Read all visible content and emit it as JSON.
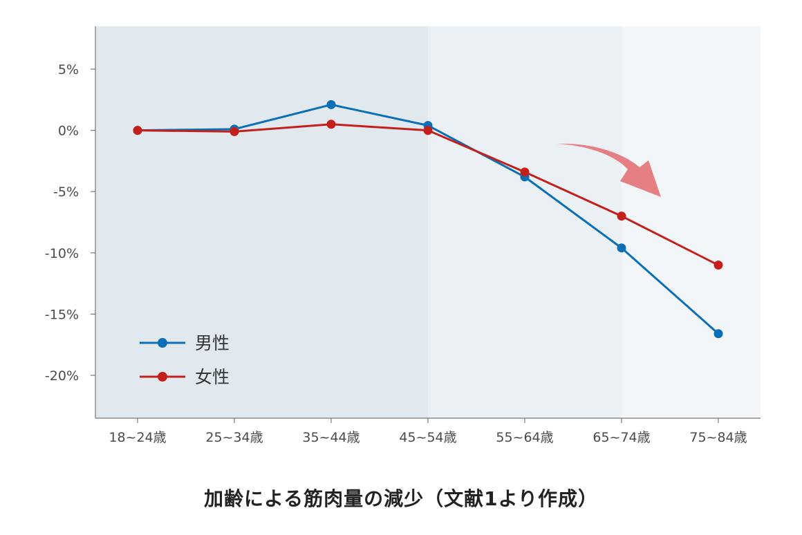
{
  "chart_data": {
    "type": "line",
    "title": "加齢による筋肉量の減少（文献1より作成）",
    "categories": [
      "18~24歳",
      "25~34歳",
      "35~44歳",
      "45~54歳",
      "55~64歳",
      "65~74歳",
      "75~84歳"
    ],
    "series": [
      {
        "name": "男性",
        "values": [
          0,
          0.1,
          2.1,
          0.4,
          -3.8,
          -9.6,
          -16.6
        ],
        "color": "#0b6fb8"
      },
      {
        "name": "女性",
        "values": [
          0,
          -0.1,
          0.5,
          0,
          -3.4,
          -7.0,
          -11.0
        ],
        "color": "#c4201b"
      }
    ],
    "ylim": [
      -23.5,
      8.5
    ],
    "yticks": [
      5,
      0,
      -5,
      -10,
      -15,
      -20
    ],
    "ytick_labels": [
      "5%",
      "0%",
      "-5%",
      "-10%",
      "-15%",
      "-20%"
    ],
    "xlabel": "",
    "ylabel": "",
    "grid": false,
    "legend_position": "bottom-left",
    "background_bands": [
      {
        "from_category": "18~24歳",
        "to_category": "45~54歳",
        "color": "#e1e9ef"
      },
      {
        "from_category": "45~54歳",
        "to_category": "65~74歳",
        "color": "#ebf0f4"
      },
      {
        "from_category": "65~74歳",
        "to_category": "75~84歳",
        "color": "#f3f6f9"
      }
    ],
    "annotation": {
      "type": "curved-arrow",
      "meaning": "decline",
      "color": "#e57f84"
    }
  }
}
